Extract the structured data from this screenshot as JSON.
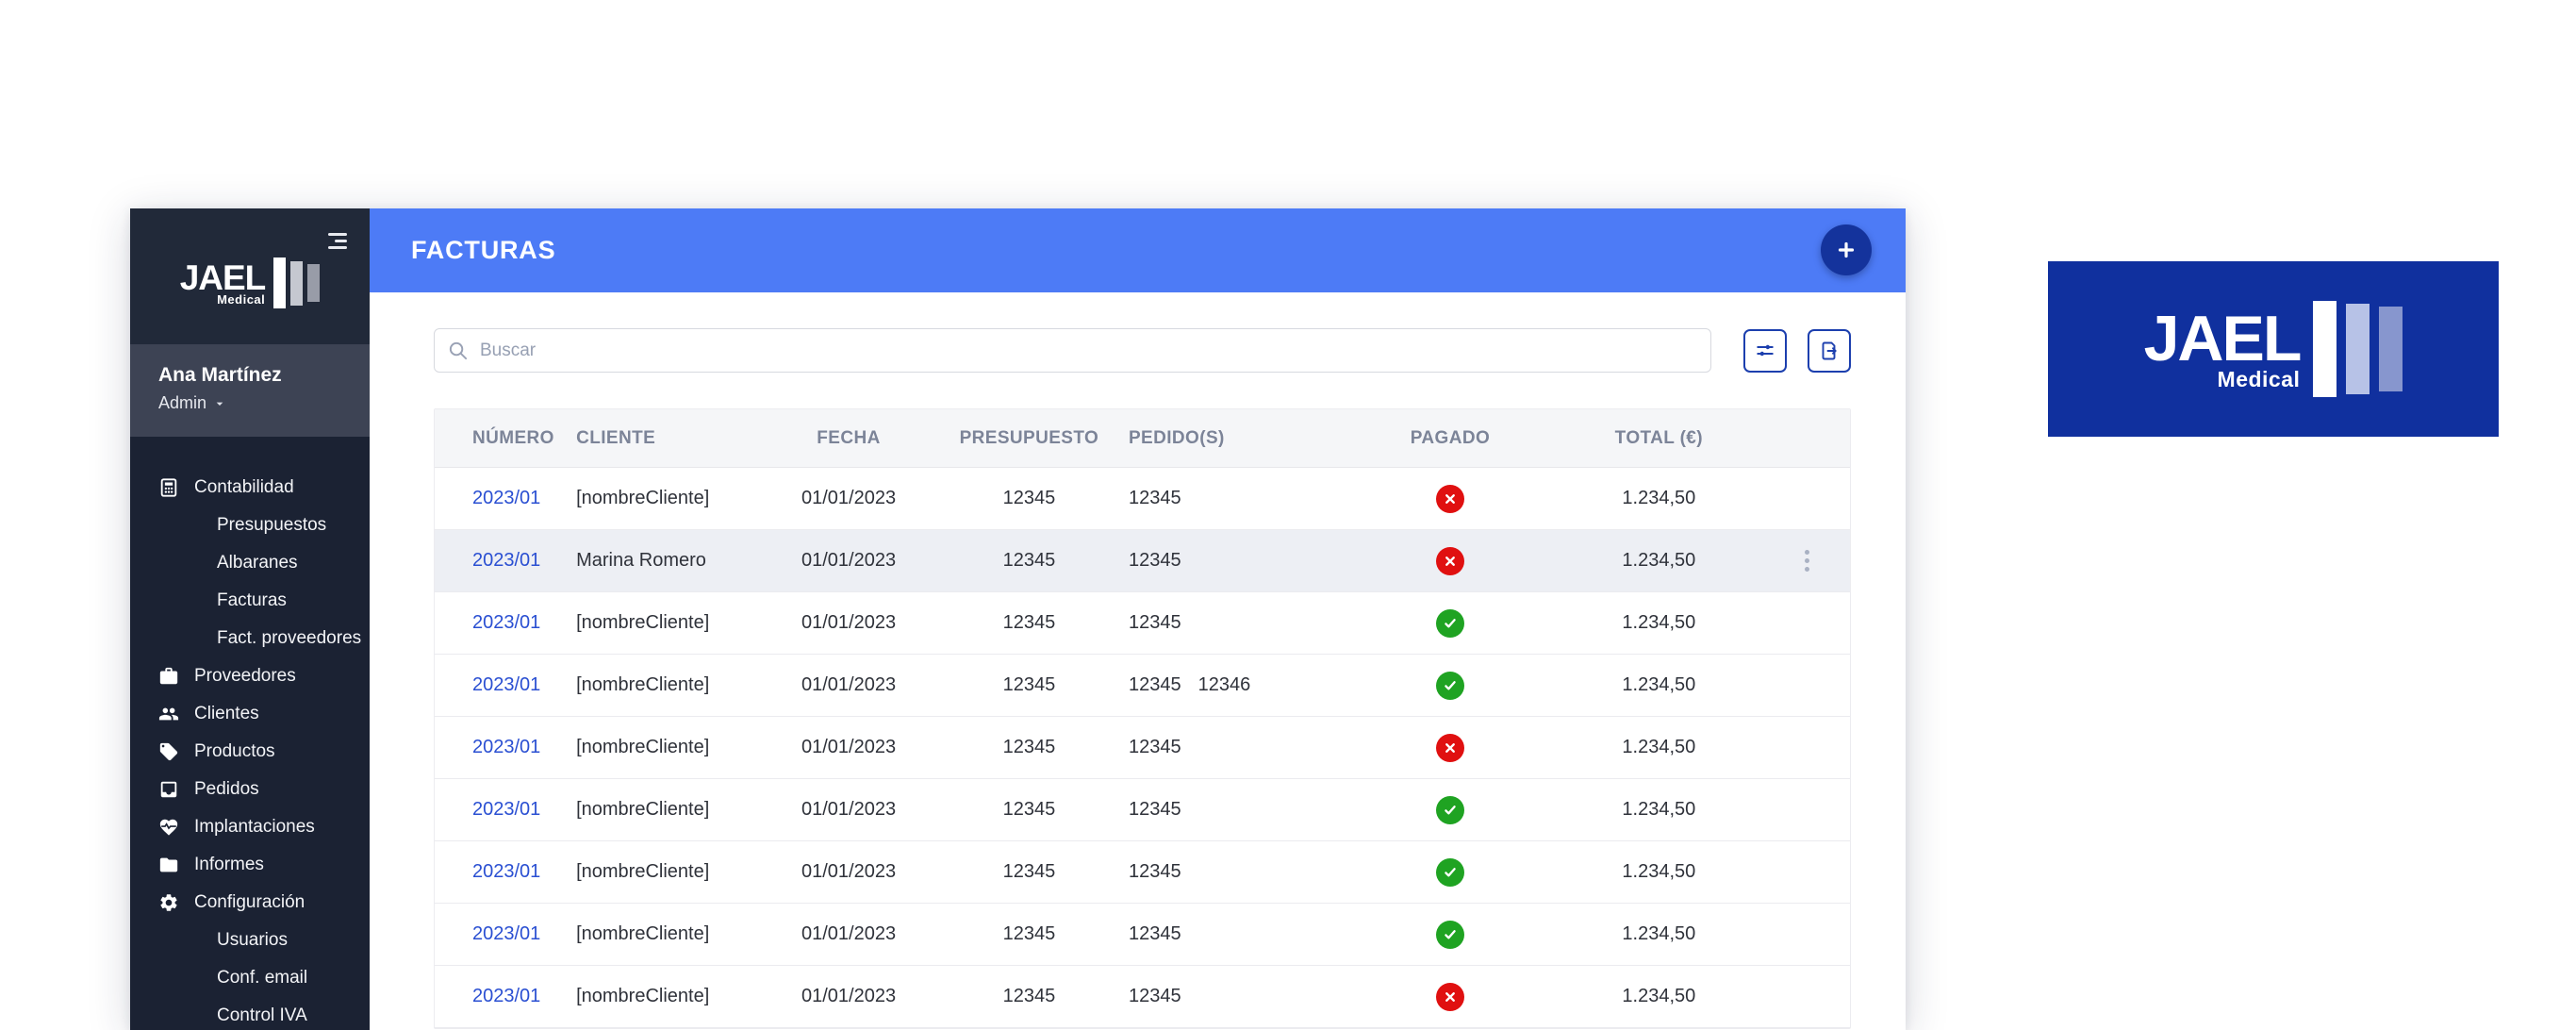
{
  "sidebar": {
    "brand": {
      "name": "JAEL",
      "tagline": "Medical"
    },
    "user": {
      "name": "Ana Martínez",
      "role": "Admin"
    },
    "items": [
      {
        "label": "Contabilidad",
        "icon": "calculator-icon",
        "type": "item"
      },
      {
        "label": "Presupuestos",
        "type": "subitem"
      },
      {
        "label": "Albaranes",
        "type": "subitem"
      },
      {
        "label": "Facturas",
        "type": "subitem"
      },
      {
        "label": "Fact. proveedores",
        "type": "subitem"
      },
      {
        "label": "Proveedores",
        "icon": "briefcase-icon",
        "type": "item"
      },
      {
        "label": "Clientes",
        "icon": "users-icon",
        "type": "item"
      },
      {
        "label": "Productos",
        "icon": "tag-icon",
        "type": "item"
      },
      {
        "label": "Pedidos",
        "icon": "inbox-icon",
        "type": "item"
      },
      {
        "label": "Implantaciones",
        "icon": "heart-pulse-icon",
        "type": "item"
      },
      {
        "label": "Informes",
        "icon": "folder-icon",
        "type": "item"
      },
      {
        "label": "Configuración",
        "icon": "gear-icon",
        "type": "item"
      },
      {
        "label": "Usuarios",
        "type": "subitem"
      },
      {
        "label": "Conf. email",
        "type": "subitem"
      },
      {
        "label": "Control IVA",
        "type": "subitem"
      }
    ]
  },
  "header": {
    "title": "FACTURAS",
    "add_button": "+"
  },
  "toolbar": {
    "search_placeholder": "Buscar"
  },
  "table": {
    "columns": [
      "NÚMERO",
      "CLIENTE",
      "FECHA",
      "PRESUPUESTO",
      "PEDIDO(S)",
      "PAGADO",
      "TOTAL (€)"
    ],
    "rows": [
      {
        "numero": "2023/01",
        "cliente": "[nombreCliente]",
        "fecha": "01/01/2023",
        "presupuesto": "12345",
        "pedidos": [
          "12345"
        ],
        "pagado": false,
        "total": "1.234,50",
        "highlighted": false,
        "menu": false
      },
      {
        "numero": "2023/01",
        "cliente": "Marina Romero",
        "fecha": "01/01/2023",
        "presupuesto": "12345",
        "pedidos": [
          "12345"
        ],
        "pagado": false,
        "total": "1.234,50",
        "highlighted": true,
        "menu": true
      },
      {
        "numero": "2023/01",
        "cliente": "[nombreCliente]",
        "fecha": "01/01/2023",
        "presupuesto": "12345",
        "pedidos": [
          "12345"
        ],
        "pagado": true,
        "total": "1.234,50",
        "highlighted": false,
        "menu": false
      },
      {
        "numero": "2023/01",
        "cliente": "[nombreCliente]",
        "fecha": "01/01/2023",
        "presupuesto": "12345",
        "pedidos": [
          "12345",
          "12346"
        ],
        "pagado": true,
        "total": "1.234,50",
        "highlighted": false,
        "menu": false
      },
      {
        "numero": "2023/01",
        "cliente": "[nombreCliente]",
        "fecha": "01/01/2023",
        "presupuesto": "12345",
        "pedidos": [
          "12345"
        ],
        "pagado": false,
        "total": "1.234,50",
        "highlighted": false,
        "menu": false
      },
      {
        "numero": "2023/01",
        "cliente": "[nombreCliente]",
        "fecha": "01/01/2023",
        "presupuesto": "12345",
        "pedidos": [
          "12345"
        ],
        "pagado": true,
        "total": "1.234,50",
        "highlighted": false,
        "menu": false
      },
      {
        "numero": "2023/01",
        "cliente": "[nombreCliente]",
        "fecha": "01/01/2023",
        "presupuesto": "12345",
        "pedidos": [
          "12345"
        ],
        "pagado": true,
        "total": "1.234,50",
        "highlighted": false,
        "menu": false
      },
      {
        "numero": "2023/01",
        "cliente": "[nombreCliente]",
        "fecha": "01/01/2023",
        "presupuesto": "12345",
        "pedidos": [
          "12345"
        ],
        "pagado": true,
        "total": "1.234,50",
        "highlighted": false,
        "menu": false
      },
      {
        "numero": "2023/01",
        "cliente": "[nombreCliente]",
        "fecha": "01/01/2023",
        "presupuesto": "12345",
        "pedidos": [
          "12345"
        ],
        "pagado": false,
        "total": "1.234,50",
        "highlighted": false,
        "menu": false
      }
    ]
  },
  "brand_card": {
    "name": "JAEL",
    "tagline": "Medical"
  },
  "colors": {
    "header_blue": "#4d7bf6",
    "add_button_blue": "#14339c",
    "brand_card_blue": "#10309e",
    "paid_green": "#1fa322",
    "unpaid_red": "#e01010",
    "link_blue": "#2a4fd2"
  }
}
